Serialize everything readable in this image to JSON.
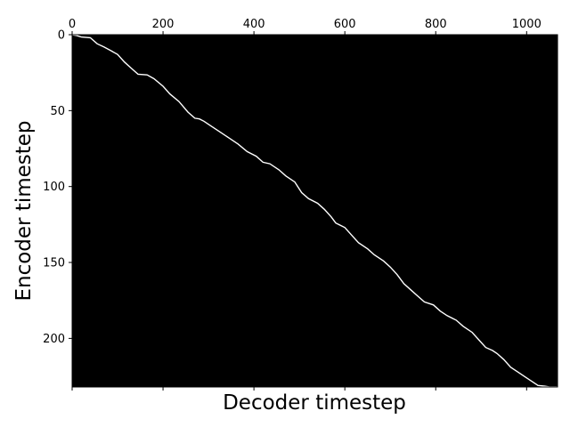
{
  "chart_data": {
    "type": "heatmap",
    "title": "",
    "xlabel": "Decoder timestep",
    "ylabel": "Encoder timestep",
    "x_axis_position": "top",
    "y_axis_inverted": true,
    "xlim": [
      0,
      1068
    ],
    "ylim": [
      0,
      232
    ],
    "xticks": [
      0,
      200,
      400,
      600,
      800,
      1000
    ],
    "xtick_labels": [
      "0",
      "200",
      "400",
      "600",
      "800",
      "1000"
    ],
    "yticks": [
      0,
      50,
      100,
      150,
      200
    ],
    "ytick_labels": [
      "0",
      "50",
      "100",
      "150",
      "200"
    ],
    "grid": false,
    "legend": "none",
    "colormap": "gray",
    "background_color": "#000000",
    "alignment_color": "#ffffff",
    "series": [
      {
        "x": [
          0,
          10,
          20,
          40,
          55,
          70,
          85,
          100,
          115,
          130,
          145,
          165,
          180,
          200,
          215,
          235,
          255,
          270,
          280,
          290,
          305,
          325,
          345,
          365,
          385,
          405,
          420,
          435,
          455,
          470,
          490,
          505,
          520,
          540,
          555,
          570,
          580,
          600,
          615,
          630,
          650,
          665,
          685,
          700,
          715,
          730,
          745,
          760,
          775,
          795,
          810,
          825,
          845,
          860,
          880,
          895,
          910,
          925,
          935,
          950,
          965,
          980,
          995,
          1010,
          1025,
          1040,
          1050,
          1068
        ],
        "y": [
          0,
          0.5,
          1.5,
          2,
          6,
          8,
          10.5,
          13,
          18,
          22,
          26,
          26.5,
          29,
          34,
          39,
          44,
          51,
          55,
          55.5,
          57,
          60,
          64,
          68,
          72,
          77,
          80,
          84,
          85,
          89,
          93,
          97,
          104,
          108,
          111,
          115,
          120,
          124,
          127,
          132,
          137,
          141,
          145,
          149,
          153,
          158,
          164,
          168,
          172,
          176,
          178,
          182,
          185,
          188,
          192,
          196,
          201,
          206,
          208,
          210,
          214,
          219,
          222,
          225,
          228,
          231,
          231.5,
          232,
          232
        ]
      }
    ]
  }
}
